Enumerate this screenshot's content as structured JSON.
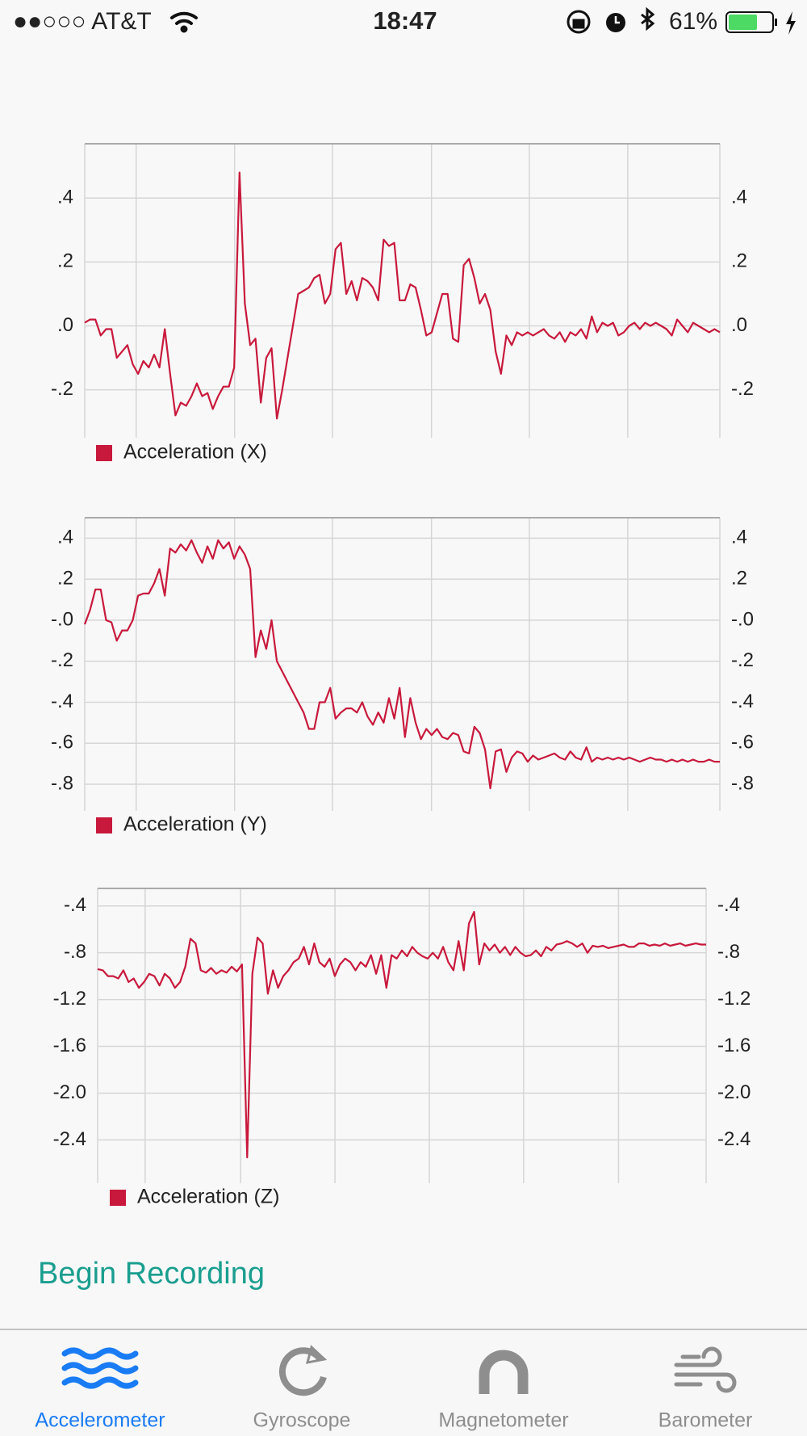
{
  "status_bar": {
    "carrier": "●●○○○ AT&T",
    "time": "18:47",
    "battery": "61%"
  },
  "chart_data": [
    {
      "type": "line",
      "series": [
        {
          "name": "Acceleration (X)",
          "color": "#c8193c",
          "values": [
            0.01,
            0.02,
            0.02,
            -0.03,
            -0.01,
            -0.01,
            -0.1,
            -0.08,
            -0.06,
            -0.12,
            -0.15,
            -0.11,
            -0.13,
            -0.09,
            -0.13,
            -0.01,
            -0.15,
            -0.28,
            -0.24,
            -0.25,
            -0.22,
            -0.18,
            -0.22,
            -0.21,
            -0.26,
            -0.22,
            -0.19,
            -0.19,
            -0.13,
            0.48,
            0.07,
            -0.06,
            -0.04,
            -0.24,
            -0.1,
            -0.07,
            -0.29,
            -0.2,
            -0.1,
            0.0,
            0.1,
            0.11,
            0.12,
            0.15,
            0.16,
            0.07,
            0.1,
            0.24,
            0.26,
            0.1,
            0.14,
            0.08,
            0.15,
            0.14,
            0.12,
            0.08,
            0.27,
            0.25,
            0.26,
            0.08,
            0.08,
            0.13,
            0.12,
            0.05,
            -0.03,
            -0.02,
            0.04,
            0.1,
            0.1,
            -0.04,
            -0.05,
            0.19,
            0.21,
            0.15,
            0.07,
            0.1,
            0.05,
            -0.08,
            -0.15,
            -0.03,
            -0.06,
            -0.02,
            -0.03,
            -0.02,
            -0.03,
            -0.02,
            -0.01,
            -0.03,
            -0.04,
            -0.02,
            -0.05,
            -0.02,
            -0.03,
            -0.01,
            -0.04,
            0.03,
            -0.02,
            0.01,
            0.0,
            0.01,
            -0.03,
            -0.02,
            0.0,
            0.01,
            -0.01,
            0.01,
            0.0,
            0.01,
            0.0,
            -0.01,
            -0.03,
            0.02,
            0.0,
            -0.02,
            0.01,
            0.0,
            -0.01,
            -0.02,
            -0.01,
            -0.02
          ]
        }
      ],
      "ylim": [
        -0.35,
        0.57
      ],
      "yticks": [
        {
          "value": -0.2,
          "label": "-.2"
        },
        {
          "value": 0,
          "label": ".0"
        },
        {
          "value": 0.2,
          "label": ".2"
        },
        {
          "value": 0.4,
          "label": ".4"
        }
      ],
      "grid": true
    },
    {
      "type": "line",
      "series": [
        {
          "name": "Acceleration (Y)",
          "color": "#c8193c",
          "values": [
            -0.02,
            0.05,
            0.15,
            0.15,
            0.0,
            -0.01,
            -0.1,
            -0.05,
            -0.05,
            0.0,
            0.12,
            0.13,
            0.13,
            0.18,
            0.25,
            0.12,
            0.35,
            0.33,
            0.37,
            0.34,
            0.39,
            0.33,
            0.28,
            0.36,
            0.3,
            0.39,
            0.35,
            0.38,
            0.3,
            0.36,
            0.32,
            0.25,
            -0.18,
            -0.05,
            -0.14,
            0.0,
            -0.2,
            -0.25,
            -0.3,
            -0.35,
            -0.4,
            -0.45,
            -0.53,
            -0.53,
            -0.4,
            -0.4,
            -0.33,
            -0.48,
            -0.45,
            -0.43,
            -0.43,
            -0.45,
            -0.4,
            -0.47,
            -0.51,
            -0.45,
            -0.5,
            -0.38,
            -0.48,
            -0.33,
            -0.57,
            -0.38,
            -0.5,
            -0.58,
            -0.53,
            -0.56,
            -0.53,
            -0.57,
            -0.58,
            -0.55,
            -0.56,
            -0.64,
            -0.65,
            -0.52,
            -0.55,
            -0.63,
            -0.82,
            -0.64,
            -0.63,
            -0.74,
            -0.67,
            -0.64,
            -0.65,
            -0.69,
            -0.66,
            -0.68,
            -0.67,
            -0.66,
            -0.65,
            -0.67,
            -0.68,
            -0.64,
            -0.67,
            -0.68,
            -0.62,
            -0.69,
            -0.67,
            -0.68,
            -0.67,
            -0.68,
            -0.67,
            -0.68,
            -0.67,
            -0.68,
            -0.69,
            -0.68,
            -0.67,
            -0.68,
            -0.68,
            -0.69,
            -0.68,
            -0.69,
            -0.68,
            -0.69,
            -0.68,
            -0.69,
            -0.69,
            -0.68,
            -0.69,
            -0.69
          ]
        }
      ],
      "ylim": [
        -0.93,
        0.5
      ],
      "yticks": [
        {
          "value": -0.8,
          "label": "-.8"
        },
        {
          "value": -0.6,
          "label": "-.6"
        },
        {
          "value": -0.4,
          "label": "-.4"
        },
        {
          "value": -0.2,
          "label": "-.2"
        },
        {
          "value": 0,
          "label": "-.0"
        },
        {
          "value": 0.2,
          "label": ".2"
        },
        {
          "value": 0.4,
          "label": ".4"
        }
      ],
      "grid": true
    },
    {
      "type": "line",
      "series": [
        {
          "name": "Acceleration (Z)",
          "color": "#c8193c",
          "values": [
            -0.94,
            -0.95,
            -1.0,
            -1.0,
            -1.02,
            -0.95,
            -1.05,
            -1.02,
            -1.1,
            -1.05,
            -0.98,
            -1.0,
            -1.08,
            -0.98,
            -1.02,
            -1.1,
            -1.05,
            -0.92,
            -0.68,
            -0.72,
            -0.95,
            -0.97,
            -0.93,
            -0.98,
            -0.95,
            -0.97,
            -0.92,
            -0.96,
            -0.9,
            -2.55,
            -0.98,
            -0.67,
            -0.72,
            -1.15,
            -0.95,
            -1.1,
            -1.0,
            -0.95,
            -0.88,
            -0.85,
            -0.75,
            -0.9,
            -0.72,
            -0.88,
            -0.92,
            -0.85,
            -1.0,
            -0.9,
            -0.85,
            -0.88,
            -0.95,
            -0.88,
            -0.92,
            -0.82,
            -0.98,
            -0.82,
            -1.1,
            -0.82,
            -0.85,
            -0.78,
            -0.83,
            -0.75,
            -0.8,
            -0.83,
            -0.85,
            -0.8,
            -0.85,
            -0.75,
            -0.88,
            -0.95,
            -0.7,
            -0.95,
            -0.55,
            -0.45,
            -0.9,
            -0.72,
            -0.78,
            -0.73,
            -0.8,
            -0.75,
            -0.82,
            -0.75,
            -0.8,
            -0.83,
            -0.82,
            -0.78,
            -0.83,
            -0.75,
            -0.78,
            -0.73,
            -0.72,
            -0.7,
            -0.72,
            -0.75,
            -0.72,
            -0.8,
            -0.74,
            -0.75,
            -0.74,
            -0.76,
            -0.75,
            -0.74,
            -0.73,
            -0.75,
            -0.75,
            -0.72,
            -0.72,
            -0.74,
            -0.73,
            -0.74,
            -0.72,
            -0.74,
            -0.73,
            -0.72,
            -0.74,
            -0.73,
            -0.72,
            -0.73,
            -0.73
          ]
        }
      ],
      "ylim": [
        -2.77,
        -0.25
      ],
      "yticks": [
        {
          "value": -2.4,
          "label": "-2.4"
        },
        {
          "value": -2.0,
          "label": "-2.0"
        },
        {
          "value": -1.6,
          "label": "-1.6"
        },
        {
          "value": -1.2,
          "label": "-1.2"
        },
        {
          "value": -0.8,
          "label": "-.8"
        },
        {
          "value": -0.4,
          "label": "-.4"
        }
      ],
      "grid": true
    }
  ],
  "button": "Begin Recording",
  "tabs": [
    {
      "label": "Accelerometer",
      "selected": true
    },
    {
      "label": "Gyroscope",
      "selected": false
    },
    {
      "label": "Magnetometer",
      "selected": false
    },
    {
      "label": "Barometer",
      "selected": false
    }
  ]
}
